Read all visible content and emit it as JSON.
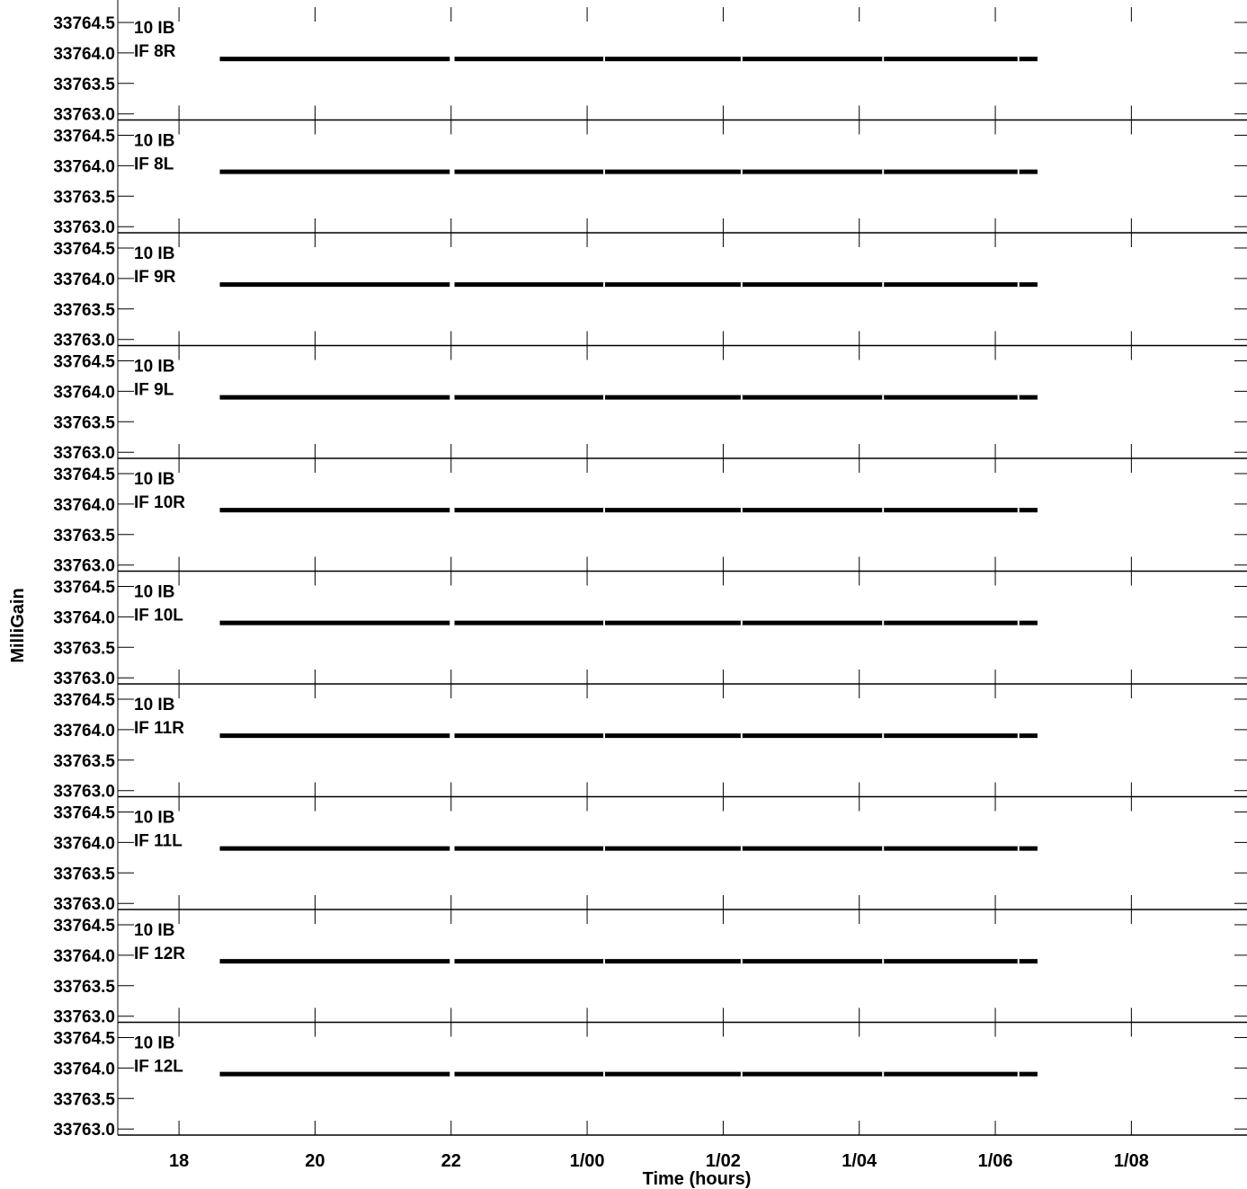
{
  "chart_data": {
    "type": "line",
    "xlabel": "Time (hours)",
    "ylabel": "MilliGain",
    "x_ticks": [
      "18",
      "20",
      "22",
      "1/00",
      "1/02",
      "1/04",
      "1/06",
      "1/08"
    ],
    "x_tick_hours": [
      18,
      20,
      22,
      24,
      26,
      28,
      30,
      32
    ],
    "xlim_hours": [
      17.1,
      33.7
    ],
    "y_ticks": [
      "33764.5",
      "33764.0",
      "33763.5",
      "33763.0"
    ],
    "ylim": [
      33762.9,
      33764.75
    ],
    "grid": false,
    "panels": [
      {
        "label_line1": "10 IB",
        "label_line2": "IF 8R",
        "value": 33763.9
      },
      {
        "label_line1": "10 IB",
        "label_line2": "IF 8L",
        "value": 33763.9
      },
      {
        "label_line1": "10 IB",
        "label_line2": "IF 9R",
        "value": 33763.9
      },
      {
        "label_line1": "10 IB",
        "label_line2": "IF 9L",
        "value": 33763.9
      },
      {
        "label_line1": "10 IB",
        "label_line2": "IF 10R",
        "value": 33763.9
      },
      {
        "label_line1": "10 IB",
        "label_line2": "IF 10L",
        "value": 33763.9
      },
      {
        "label_line1": "10 IB",
        "label_line2": "IF 11R",
        "value": 33763.9
      },
      {
        "label_line1": "10 IB",
        "label_line2": "IF 11L",
        "value": 33763.9
      },
      {
        "label_line1": "10 IB",
        "label_line2": "IF 12R",
        "value": 33763.9
      },
      {
        "label_line1": "10 IB",
        "label_line2": "IF 12L",
        "value": 33763.9
      }
    ],
    "data_segments_hours": [
      [
        18.6,
        21.98
      ],
      [
        22.05,
        30.62
      ]
    ],
    "gaps_hours": [
      21.98,
      24.25,
      26.27,
      28.35,
      30.34
    ]
  }
}
